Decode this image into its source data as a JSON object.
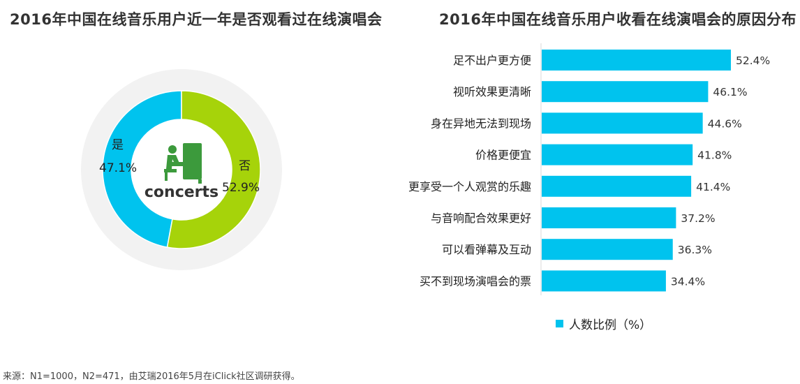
{
  "left_chart": {
    "title": "2016年中国在线音乐用户近一年是否观看过在线演唱会",
    "center_label": "concerts"
  },
  "right_chart": {
    "title": "2016年中国在线音乐用户收看在线演唱会的原因分布",
    "legend_label": "人数比例（%）"
  },
  "source_note": "来源：N1=1000，N2=471，由艾瑞2016年5月在iClick社区调研获得。",
  "colors": {
    "bar": "#00c3ee",
    "yes": "#00c3ee",
    "no": "#a6d30a",
    "ring_bg": "#f2f2f2",
    "icon": "#3c9a3c"
  },
  "chart_data": [
    {
      "type": "pie",
      "title": "2016年中国在线音乐用户近一年是否观看过在线演唱会",
      "categories": [
        "是",
        "否"
      ],
      "values": [
        47.1,
        52.9
      ],
      "value_labels": [
        "47.1%",
        "52.9%"
      ]
    },
    {
      "type": "bar",
      "orientation": "horizontal",
      "title": "2016年中国在线音乐用户收看在线演唱会的原因分布",
      "categories": [
        "足不出户更方便",
        "视听效果更清晰",
        "身在异地无法到现场",
        "价格更便宜",
        "更享受一个人观赏的乐趣",
        "与音响配合效果更好",
        "可以看弹幕及互动",
        "买不到现场演唱会的票"
      ],
      "values": [
        52.4,
        46.1,
        44.6,
        41.8,
        41.4,
        37.2,
        36.3,
        34.4
      ],
      "value_labels": [
        "52.4%",
        "46.1%",
        "44.6%",
        "41.8%",
        "41.4%",
        "37.2%",
        "36.3%",
        "34.4%"
      ],
      "series": [
        {
          "name": "人数比例（%）",
          "values": [
            52.4,
            46.1,
            44.6,
            41.8,
            41.4,
            37.2,
            36.3,
            34.4
          ]
        }
      ],
      "legend": "bottom"
    }
  ]
}
